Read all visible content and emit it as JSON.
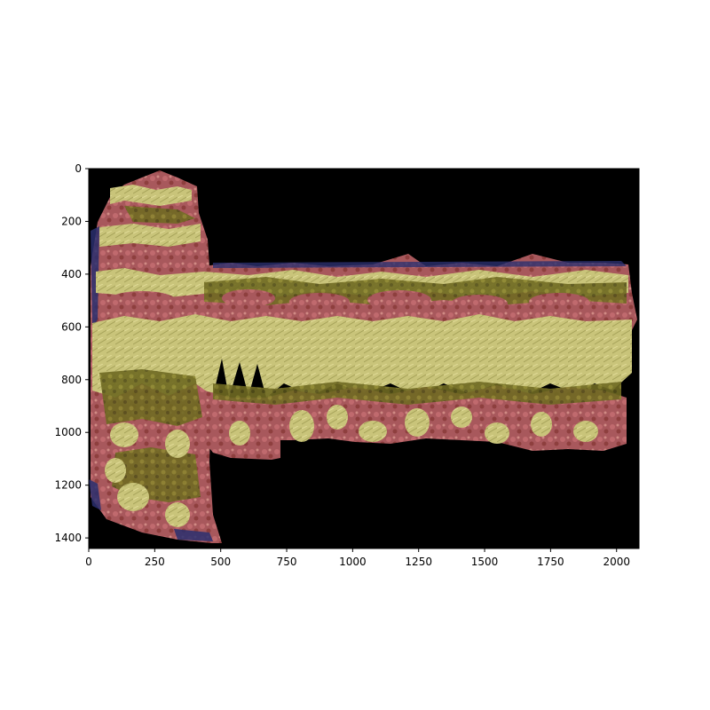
{
  "figure": {
    "axes": {
      "x_ticks": [
        "0",
        "250",
        "500",
        "750",
        "1000",
        "1250",
        "1500",
        "1750",
        "2000"
      ],
      "y_ticks": [
        "0",
        "200",
        "400",
        "600",
        "800",
        "1000",
        "1200",
        "1400"
      ],
      "x_range": [
        0,
        2085
      ],
      "y_range": [
        1440,
        0
      ],
      "y_inverted": true
    },
    "image": {
      "description_kind": "segmentation-overlay",
      "colors": {
        "background": "#000000",
        "class_red": "#a8585c",
        "class_red_dark": "#7a3a32",
        "class_yellow": "#c9c47a",
        "class_olive": "#6f6a22",
        "class_blue": "#2a2f6e"
      }
    }
  }
}
